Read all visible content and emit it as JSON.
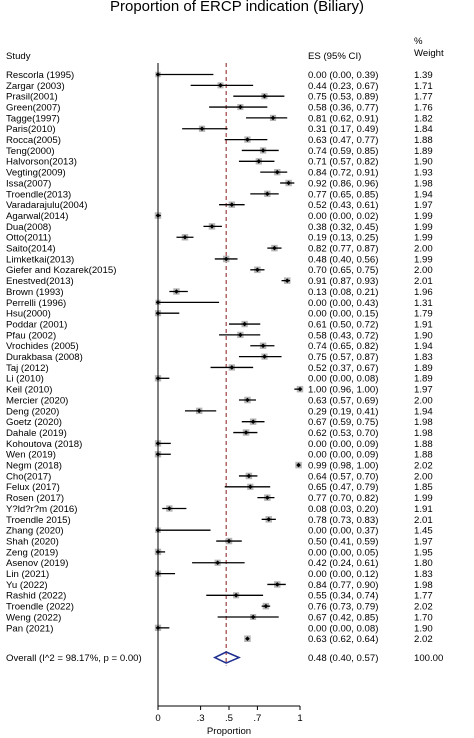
{
  "chart_data": {
    "type": "forest",
    "title": "Proportion of ERCP indication (Biliary)",
    "headers": {
      "study": "Study",
      "es": "ES (95% CI)",
      "weight": "%\nWeight"
    },
    "xlabel": "Proportion",
    "xlim": [
      0,
      1
    ],
    "xticks": [
      {
        "value": 0,
        "label": "0"
      },
      {
        "value": 0.3,
        "label": ".3"
      },
      {
        "value": 0.5,
        "label": ".5"
      },
      {
        "value": 0.7,
        "label": ".7"
      },
      {
        "value": 1,
        "label": "1"
      }
    ],
    "reference_line": 0.48,
    "studies": [
      {
        "name": "Rescorla (1995)",
        "es": 0.0,
        "lo": 0.0,
        "hi": 0.39,
        "es_text": "0.00 (0.00, 0.39)",
        "weight": "1.39"
      },
      {
        "name": "Zargar (2003)",
        "es": 0.44,
        "lo": 0.23,
        "hi": 0.67,
        "es_text": "0.44 (0.23, 0.67)",
        "weight": "1.71"
      },
      {
        "name": "Prasil(2001)",
        "es": 0.75,
        "lo": 0.53,
        "hi": 0.89,
        "es_text": "0.75 (0.53, 0.89)",
        "weight": "1.77"
      },
      {
        "name": "Green(2007)",
        "es": 0.58,
        "lo": 0.36,
        "hi": 0.77,
        "es_text": "0.58 (0.36, 0.77)",
        "weight": "1.76"
      },
      {
        "name": "Tagge(1997)",
        "es": 0.81,
        "lo": 0.62,
        "hi": 0.91,
        "es_text": "0.81 (0.62, 0.91)",
        "weight": "1.82"
      },
      {
        "name": "Paris(2010)",
        "es": 0.31,
        "lo": 0.17,
        "hi": 0.49,
        "es_text": "0.31 (0.17, 0.49)",
        "weight": "1.84"
      },
      {
        "name": "Rocca(2005)",
        "es": 0.63,
        "lo": 0.47,
        "hi": 0.77,
        "es_text": "0.63 (0.47, 0.77)",
        "weight": "1.88"
      },
      {
        "name": "Teng(2000)",
        "es": 0.74,
        "lo": 0.59,
        "hi": 0.85,
        "es_text": "0.74 (0.59, 0.85)",
        "weight": "1.89"
      },
      {
        "name": "Halvorson(2013)",
        "es": 0.71,
        "lo": 0.57,
        "hi": 0.82,
        "es_text": "0.71 (0.57, 0.82)",
        "weight": "1.90"
      },
      {
        "name": "Vegting(2009)",
        "es": 0.84,
        "lo": 0.72,
        "hi": 0.91,
        "es_text": "0.84 (0.72, 0.91)",
        "weight": "1.93"
      },
      {
        "name": "Issa(2007)",
        "es": 0.92,
        "lo": 0.86,
        "hi": 0.96,
        "es_text": "0.92 (0.86, 0.96)",
        "weight": "1.98"
      },
      {
        "name": "Troendle(2013)",
        "es": 0.77,
        "lo": 0.65,
        "hi": 0.85,
        "es_text": "0.77 (0.65, 0.85)",
        "weight": "1.94"
      },
      {
        "name": "Varadarajulu(2004)",
        "es": 0.52,
        "lo": 0.43,
        "hi": 0.61,
        "es_text": "0.52 (0.43, 0.61)",
        "weight": "1.97"
      },
      {
        "name": "Agarwal(2014)",
        "es": 0.0,
        "lo": 0.0,
        "hi": 0.02,
        "es_text": "0.00 (0.00, 0.02)",
        "weight": "1.99"
      },
      {
        "name": "Dua(2008)",
        "es": 0.38,
        "lo": 0.32,
        "hi": 0.45,
        "es_text": "0.38 (0.32, 0.45)",
        "weight": "1.99"
      },
      {
        "name": "Otto(2011)",
        "es": 0.19,
        "lo": 0.13,
        "hi": 0.25,
        "es_text": "0.19 (0.13, 0.25)",
        "weight": "1.99"
      },
      {
        "name": "Saito(2014)",
        "es": 0.82,
        "lo": 0.77,
        "hi": 0.87,
        "es_text": "0.82 (0.77, 0.87)",
        "weight": "2.00"
      },
      {
        "name": "Limketkai(2013)",
        "es": 0.48,
        "lo": 0.4,
        "hi": 0.56,
        "es_text": "0.48 (0.40, 0.56)",
        "weight": "1.99"
      },
      {
        "name": "Giefer and Kozarek(2015)",
        "es": 0.7,
        "lo": 0.65,
        "hi": 0.75,
        "es_text": "0.70 (0.65, 0.75)",
        "weight": "2.00"
      },
      {
        "name": "Enestved(2013)",
        "es": 0.91,
        "lo": 0.87,
        "hi": 0.93,
        "es_text": "0.91 (0.87, 0.93)",
        "weight": "2.01"
      },
      {
        "name": "Brown (1993)",
        "es": 0.13,
        "lo": 0.08,
        "hi": 0.21,
        "es_text": "0.13 (0.08, 0.21)",
        "weight": "1.96"
      },
      {
        "name": "Perrelli (1996)",
        "es": 0.0,
        "lo": 0.0,
        "hi": 0.43,
        "es_text": "0.00 (0.00, 0.43)",
        "weight": "1.31"
      },
      {
        "name": "Hsu(2000)",
        "es": 0.0,
        "lo": 0.0,
        "hi": 0.15,
        "es_text": "0.00 (0.00, 0.15)",
        "weight": "1.79"
      },
      {
        "name": "Poddar (2001)",
        "es": 0.61,
        "lo": 0.5,
        "hi": 0.72,
        "es_text": "0.61 (0.50, 0.72)",
        "weight": "1.91"
      },
      {
        "name": "Pfau (2002)",
        "es": 0.58,
        "lo": 0.43,
        "hi": 0.72,
        "es_text": "0.58 (0.43, 0.72)",
        "weight": "1.90"
      },
      {
        "name": "Vrochides (2005)",
        "es": 0.74,
        "lo": 0.65,
        "hi": 0.82,
        "es_text": "0.74 (0.65, 0.82)",
        "weight": "1.94"
      },
      {
        "name": "Durakbasa (2008)",
        "es": 0.75,
        "lo": 0.57,
        "hi": 0.87,
        "es_text": "0.75 (0.57, 0.87)",
        "weight": "1.83"
      },
      {
        "name": "Taj (2012)",
        "es": 0.52,
        "lo": 0.37,
        "hi": 0.67,
        "es_text": "0.52 (0.37, 0.67)",
        "weight": "1.89"
      },
      {
        "name": "Li (2010)",
        "es": 0.0,
        "lo": 0.0,
        "hi": 0.08,
        "es_text": "0.00 (0.00, 0.08)",
        "weight": "1.89"
      },
      {
        "name": "Keil (2010)",
        "es": 1.0,
        "lo": 0.96,
        "hi": 1.0,
        "es_text": "1.00 (0.96, 1.00)",
        "weight": "1.97"
      },
      {
        "name": "Mercier (2020)",
        "es": 0.63,
        "lo": 0.57,
        "hi": 0.69,
        "es_text": "0.63 (0.57, 0.69)",
        "weight": "2.00"
      },
      {
        "name": "Deng (2020)",
        "es": 0.29,
        "lo": 0.19,
        "hi": 0.41,
        "es_text": "0.29 (0.19, 0.41)",
        "weight": "1.94"
      },
      {
        "name": "Goetz (2020)",
        "es": 0.67,
        "lo": 0.59,
        "hi": 0.75,
        "es_text": "0.67 (0.59, 0.75)",
        "weight": "1.98"
      },
      {
        "name": "Dahale (2019)",
        "es": 0.62,
        "lo": 0.53,
        "hi": 0.7,
        "es_text": "0.62 (0.53, 0.70)",
        "weight": "1.98"
      },
      {
        "name": "Kohoutova (2018)",
        "es": 0.0,
        "lo": 0.0,
        "hi": 0.09,
        "es_text": "0.00 (0.00, 0.09)",
        "weight": "1.88"
      },
      {
        "name": "Wen (2019)",
        "es": 0.0,
        "lo": 0.0,
        "hi": 0.09,
        "es_text": "0.00 (0.00, 0.09)",
        "weight": "1.88"
      },
      {
        "name": "Negm (2018)",
        "es": 0.99,
        "lo": 0.98,
        "hi": 1.0,
        "es_text": "0.99 (0.98, 1.00)",
        "weight": "2.02"
      },
      {
        "name": "Cho(2017)",
        "es": 0.64,
        "lo": 0.57,
        "hi": 0.7,
        "es_text": "0.64 (0.57, 0.70)",
        "weight": "2.00"
      },
      {
        "name": "Felux (2017)",
        "es": 0.65,
        "lo": 0.47,
        "hi": 0.79,
        "es_text": "0.65 (0.47, 0.79)",
        "weight": "1.85"
      },
      {
        "name": "Rosen (2017)",
        "es": 0.77,
        "lo": 0.7,
        "hi": 0.82,
        "es_text": "0.77 (0.70, 0.82)",
        "weight": "1.99"
      },
      {
        "name": "Y?ld?r?m (2016)",
        "es": 0.08,
        "lo": 0.03,
        "hi": 0.2,
        "es_text": "0.08 (0.03, 0.20)",
        "weight": "1.91"
      },
      {
        "name": "Troendle 2015)",
        "es": 0.78,
        "lo": 0.73,
        "hi": 0.83,
        "es_text": "0.78 (0.73, 0.83)",
        "weight": "2.01"
      },
      {
        "name": "Zhang (2020)",
        "es": 0.0,
        "lo": 0.0,
        "hi": 0.37,
        "es_text": "0.00 (0.00, 0.37)",
        "weight": "1.45"
      },
      {
        "name": "Shah (2020)",
        "es": 0.5,
        "lo": 0.41,
        "hi": 0.59,
        "es_text": "0.50 (0.41, 0.59)",
        "weight": "1.97"
      },
      {
        "name": "Zeng (2019)",
        "es": 0.0,
        "lo": 0.0,
        "hi": 0.05,
        "es_text": "0.00 (0.00, 0.05)",
        "weight": "1.95"
      },
      {
        "name": "Asenov (2019)",
        "es": 0.42,
        "lo": 0.24,
        "hi": 0.61,
        "es_text": "0.42 (0.24, 0.61)",
        "weight": "1.80"
      },
      {
        "name": "Lin (2021)",
        "es": 0.0,
        "lo": 0.0,
        "hi": 0.12,
        "es_text": "0.00 (0.00, 0.12)",
        "weight": "1.83"
      },
      {
        "name": "Yu (2022)",
        "es": 0.84,
        "lo": 0.77,
        "hi": 0.9,
        "es_text": "0.84 (0.77, 0.90)",
        "weight": "1.98"
      },
      {
        "name": "Rashid (2022)",
        "es": 0.55,
        "lo": 0.34,
        "hi": 0.74,
        "es_text": "0.55 (0.34, 0.74)",
        "weight": "1.77"
      },
      {
        "name": "Troendle (2022)",
        "es": 0.76,
        "lo": 0.73,
        "hi": 0.79,
        "es_text": "0.76 (0.73, 0.79)",
        "weight": "2.02"
      },
      {
        "name": "Weng (2022)",
        "es": 0.67,
        "lo": 0.42,
        "hi": 0.85,
        "es_text": "0.67 (0.42, 0.85)",
        "weight": "1.70"
      },
      {
        "name": "Pan (2021)",
        "es": 0.0,
        "lo": 0.0,
        "hi": 0.08,
        "es_text": "0.00 (0.00, 0.08)",
        "weight": "1.90"
      },
      {
        "name": "",
        "es": 0.63,
        "lo": 0.62,
        "hi": 0.64,
        "es_text": "0.63 (0.62, 0.64)",
        "weight": "2.02"
      }
    ],
    "overall": {
      "name": "Overall  (I^2 = 98.17%, p = 0.00)",
      "es": 0.48,
      "lo": 0.4,
      "hi": 0.57,
      "es_text": "0.48 (0.40, 0.57)",
      "weight": "100.00"
    }
  }
}
